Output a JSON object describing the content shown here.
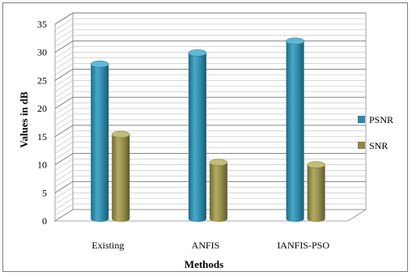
{
  "chart_data": {
    "type": "bar",
    "categories": [
      "Existing",
      "ANFIS",
      "IANFIS-PSO"
    ],
    "series": [
      {
        "name": "PSNR",
        "values": [
          27.5,
          29.5,
          31.6
        ],
        "color": "#2e86a6"
      },
      {
        "name": "SNR",
        "values": [
          15.0,
          10.0,
          9.6
        ],
        "color": "#8f8846"
      }
    ],
    "xlabel": "Methods",
    "ylabel": "Values in dB",
    "ylim": [
      0,
      35
    ],
    "yticks": [
      0,
      5,
      10,
      15,
      20,
      25,
      30,
      35
    ],
    "grid": true,
    "legend_position": "right",
    "style": "3d-cylinder"
  }
}
